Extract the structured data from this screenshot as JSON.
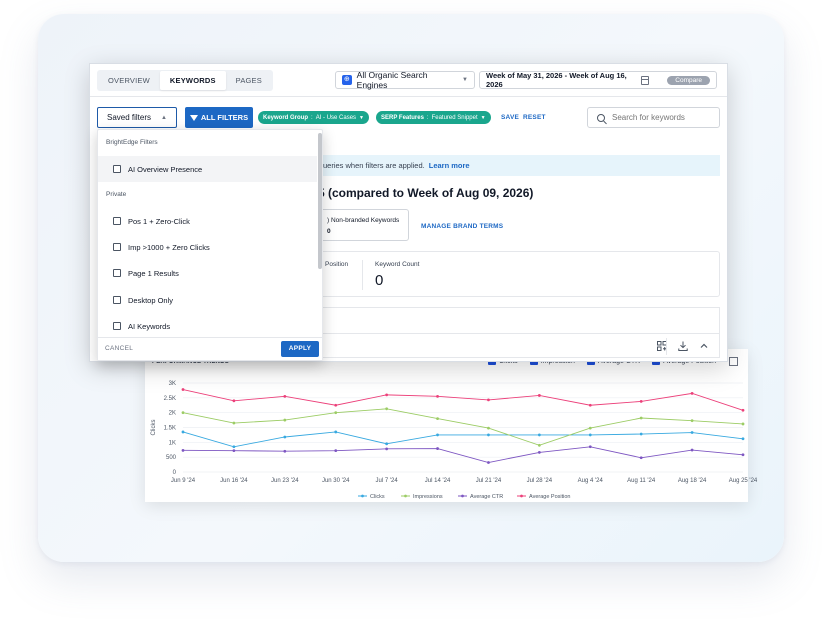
{
  "tabs": [
    {
      "label": "OVERVIEW",
      "active": false
    },
    {
      "label": "KEYWORDS",
      "active": true
    },
    {
      "label": "PAGES",
      "active": false
    }
  ],
  "search_engine": {
    "selected": "All Organic Search Engines",
    "icon": "globe-icon"
  },
  "date_range": {
    "label": "Week of May 31, 2026 - Week of Aug 16, 2026",
    "compare_label": "Compare"
  },
  "filters": {
    "saved_filters_label": "Saved filters",
    "all_filters_label": "ALL FILTERS",
    "chips": [
      {
        "key": "Keyword Group",
        "value": "AI - Use Cases"
      },
      {
        "key": "SERP Features",
        "value": "Featured Snippet"
      }
    ],
    "save_label": "SAVE",
    "reset_label": "RESET"
  },
  "search": {
    "placeholder": "Search for keywords",
    "value": ""
  },
  "info_banner": {
    "text": "ueries when filters are applied.",
    "link": "Learn more"
  },
  "period_title": "5 (compared to Week of Aug 09, 2026)",
  "non_branded": {
    "label": "Non-branded Keywords",
    "value": "0",
    "prefix": ")"
  },
  "manage_brand_terms": "MANAGE BRAND TERMS",
  "metrics": {
    "position_label": "Position",
    "keyword_count_label": "Keyword Count",
    "keyword_count_value": "0"
  },
  "dropdown": {
    "section_brightedge": "BrightEdge Filters",
    "brightedge_items": [
      "AI Overview Presence"
    ],
    "section_private": "Private",
    "private_items": [
      "Pos 1 + Zero-Click",
      "Imp >1000 + Zero Clicks",
      "Page 1 Results",
      "Desktop Only",
      "AI Keywords"
    ],
    "cancel_label": "CANCEL",
    "apply_label": "APPLY"
  },
  "performance": {
    "title": "PERFORMANCE TRENDS",
    "top_legend": [
      "Clicks",
      "Impression",
      "Average CTR",
      "Average Position"
    ]
  },
  "chart_data": {
    "type": "line",
    "title": "PERFORMANCE TRENDS",
    "ylabel": "Clicks",
    "xlabel": "",
    "ylim": [
      0,
      3000
    ],
    "yticks": [
      "0",
      "500",
      "1K",
      "1.5K",
      "2K",
      "2.5K",
      "3K"
    ],
    "x_tick_labels": [
      "Jun 9 '24",
      "Jun 16 '24",
      "Jun 23 '24",
      "Jun 30 '24",
      "Jul 7 '24",
      "Jul 14 '24",
      "Jul 21 '24",
      "Jul 28 '24",
      "Aug 4 '24",
      "Aug 11 '24",
      "Aug 18 '24",
      "Aug 25 '24"
    ],
    "series": [
      {
        "name": "Clicks",
        "color": "#38a9e0",
        "values": [
          1350,
          850,
          1180,
          1350,
          950,
          1250,
          1250,
          1250,
          1250,
          1280,
          1330,
          1120
        ]
      },
      {
        "name": "Impressions",
        "color": "#9ccc65",
        "values": [
          2000,
          1650,
          1750,
          2000,
          2130,
          1800,
          1480,
          900,
          1480,
          1820,
          1730,
          1620
        ]
      },
      {
        "name": "Average CTR",
        "color": "#7e57c2",
        "values": [
          730,
          720,
          700,
          720,
          780,
          790,
          320,
          660,
          850,
          480,
          740,
          580
        ]
      },
      {
        "name": "Average Position",
        "color": "#ec407a",
        "values": [
          2780,
          2400,
          2550,
          2250,
          2600,
          2550,
          2430,
          2580,
          2250,
          2380,
          2650,
          2080
        ]
      }
    ],
    "legend_position": "bottom",
    "grid": true
  }
}
